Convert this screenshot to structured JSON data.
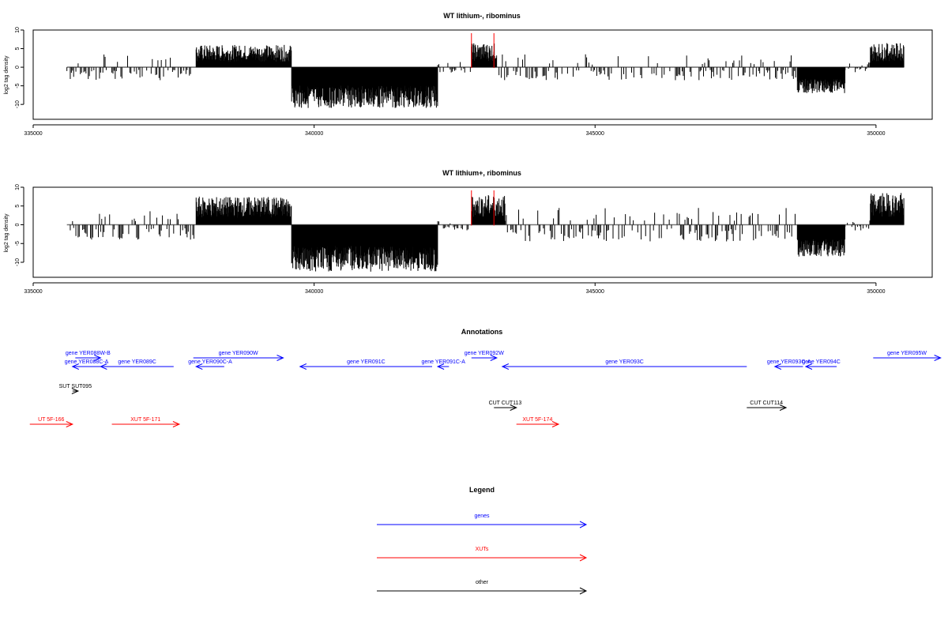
{
  "chart_data": [
    {
      "type": "bar",
      "title": "WT lithium-, ribominus",
      "xlabel": "",
      "ylabel": "log2 tag density",
      "xlim": [
        335000,
        351000
      ],
      "ylim": [
        -14,
        10
      ],
      "x_ticks": [
        "335000",
        "340000",
        "345000",
        "350000"
      ],
      "y_ticks": [
        "10",
        "5",
        "0",
        "-5",
        "-10"
      ],
      "baseline": [
        335600,
        350500
      ],
      "highlight_lines": [
        342800,
        343200
      ],
      "segments": [
        {
          "start": 335600,
          "end": 337900,
          "amp": 3.5,
          "sign": "mixed"
        },
        {
          "start": 337900,
          "end": 339600,
          "amp": 6,
          "sign": "pos"
        },
        {
          "start": 339600,
          "end": 342200,
          "amp": 11,
          "sign": "neg"
        },
        {
          "start": 342200,
          "end": 342800,
          "amp": 1.5,
          "sign": "mixed"
        },
        {
          "start": 342800,
          "end": 343250,
          "amp": 6.5,
          "sign": "pos"
        },
        {
          "start": 343250,
          "end": 348600,
          "amp": 3.5,
          "sign": "mixed"
        },
        {
          "start": 348600,
          "end": 349450,
          "amp": 7,
          "sign": "neg"
        },
        {
          "start": 349450,
          "end": 349900,
          "amp": 1.5,
          "sign": "mixed"
        },
        {
          "start": 349900,
          "end": 350500,
          "amp": 6.5,
          "sign": "pos"
        }
      ]
    },
    {
      "type": "bar",
      "title": "WT lithium+, ribominus",
      "xlabel": "",
      "ylabel": "log2 tag density",
      "xlim": [
        335000,
        351000
      ],
      "ylim": [
        -14,
        10
      ],
      "x_ticks": [
        "335000",
        "340000",
        "345000",
        "350000"
      ],
      "y_ticks": [
        "10",
        "5",
        "0",
        "-5",
        "-10"
      ],
      "baseline": [
        335600,
        350500
      ],
      "highlight_lines": [
        342800,
        343200
      ],
      "segments": [
        {
          "start": 335600,
          "end": 337900,
          "amp": 4,
          "sign": "mixed"
        },
        {
          "start": 337900,
          "end": 339600,
          "amp": 7.5,
          "sign": "pos"
        },
        {
          "start": 339600,
          "end": 342200,
          "amp": 12.5,
          "sign": "neg"
        },
        {
          "start": 342200,
          "end": 342800,
          "amp": 1.5,
          "sign": "mixed"
        },
        {
          "start": 342800,
          "end": 343400,
          "amp": 8,
          "sign": "pos"
        },
        {
          "start": 343400,
          "end": 348600,
          "amp": 4.5,
          "sign": "mixed"
        },
        {
          "start": 348600,
          "end": 349450,
          "amp": 8.5,
          "sign": "neg"
        },
        {
          "start": 349450,
          "end": 349900,
          "amp": 1.5,
          "sign": "mixed"
        },
        {
          "start": 349900,
          "end": 350500,
          "amp": 8.5,
          "sign": "pos"
        }
      ]
    }
  ],
  "annotations": {
    "title": "Annotations",
    "features": [
      {
        "label": "gene YER088W-B",
        "start": 335750,
        "end": 336200,
        "strand": "+",
        "color": "#0000ff",
        "row": 0
      },
      {
        "label": "gene YER088C-A",
        "start": 335700,
        "end": 336200,
        "strand": "-",
        "color": "#0000ff",
        "row": 1
      },
      {
        "label": "gene YER089C",
        "start": 336200,
        "end": 337500,
        "strand": "-",
        "color": "#0000ff",
        "row": 1
      },
      {
        "label": "gene YER090W",
        "start": 337850,
        "end": 339450,
        "strand": "+",
        "color": "#0000ff",
        "row": 0
      },
      {
        "label": "gene YER090C-A",
        "start": 337900,
        "end": 338400,
        "strand": "-",
        "color": "#0000ff",
        "row": 1
      },
      {
        "label": "gene YER091C",
        "start": 339750,
        "end": 342100,
        "strand": "-",
        "color": "#0000ff",
        "row": 1
      },
      {
        "label": "gene YER091C-A",
        "start": 342200,
        "end": 342400,
        "strand": "-",
        "color": "#0000ff",
        "row": 1
      },
      {
        "label": "gene YER092W",
        "start": 342800,
        "end": 343250,
        "strand": "+",
        "color": "#0000ff",
        "row": 0
      },
      {
        "label": "gene YER093C",
        "start": 343350,
        "end": 347700,
        "strand": "-",
        "color": "#0000ff",
        "row": 1
      },
      {
        "label": "gene YER093C-A",
        "start": 348200,
        "end": 348700,
        "strand": "-",
        "color": "#0000ff",
        "row": 1
      },
      {
        "label": "gene YER094C",
        "start": 348750,
        "end": 349300,
        "strand": "-",
        "color": "#0000ff",
        "row": 1
      },
      {
        "label": "gene YER095W",
        "start": 349950,
        "end": 351150,
        "strand": "+",
        "color": "#0000ff",
        "row": 0
      },
      {
        "label": "SUT SUT095",
        "start": 335700,
        "end": 335800,
        "strand": "+",
        "color": "#000000",
        "row": 2
      },
      {
        "label": "CUT CUT113",
        "start": 343200,
        "end": 343600,
        "strand": "+",
        "color": "#000000",
        "row": 3
      },
      {
        "label": "CUT CUT114",
        "start": 347700,
        "end": 348400,
        "strand": "+",
        "color": "#000000",
        "row": 3
      },
      {
        "label": "UT 5F-166",
        "start": 334940,
        "end": 335700,
        "strand": "+",
        "color": "#ff0000",
        "row": 4
      },
      {
        "label": "XUT 5F-171",
        "start": 336400,
        "end": 337600,
        "strand": "+",
        "color": "#ff0000",
        "row": 4
      },
      {
        "label": "XUT 5F-174",
        "start": 343600,
        "end": 344350,
        "strand": "+",
        "color": "#ff0000",
        "row": 4
      }
    ]
  },
  "legend": {
    "title": "Legend",
    "items": [
      {
        "label": "genes",
        "color": "#0000ff"
      },
      {
        "label": "XUTs",
        "color": "#ff0000"
      },
      {
        "label": "other",
        "color": "#000000"
      }
    ]
  }
}
